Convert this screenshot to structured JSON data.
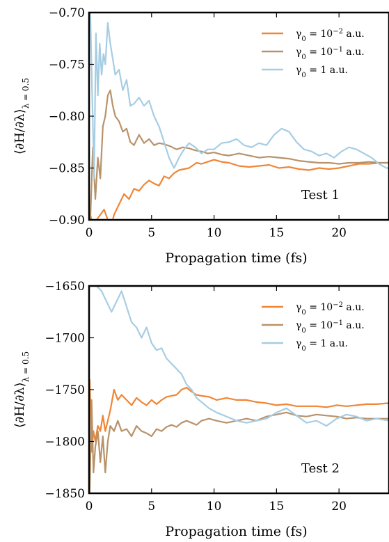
{
  "series_colors": {
    "g1": "#ef8636",
    "g2": "#b8926a",
    "g3": "#a6cde3"
  },
  "chart_data": [
    {
      "type": "line",
      "xlabel": "Propagation time (fs)",
      "ylabel": "⟨∂H/∂λ⟩",
      "ylabel_sub": "λ = 0.5",
      "annotation": "Test 1",
      "xlim": [
        0,
        24
      ],
      "ylim": [
        -0.9,
        -0.7
      ],
      "xticks": [
        0,
        5,
        10,
        15,
        20
      ],
      "xtick_labels": [
        "0",
        "5",
        "10",
        "15",
        "20"
      ],
      "yticks": [
        -0.9,
        -0.85,
        -0.8,
        -0.75,
        -0.7
      ],
      "ytick_labels": [
        "−0.90",
        "−0.85",
        "−0.80",
        "−0.75",
        "−0.70"
      ],
      "legend": "top-right",
      "series": [
        {
          "name": "γ0 = 10^-2 a.u.",
          "name_base": "γ",
          "name_sub": "0",
          "name_eq": " = 10",
          "name_sup": "−2",
          "name_unit": " a.u.",
          "color": "#ef8636",
          "x": [
            0.1,
            0.3,
            0.6,
            0.9,
            1.2,
            1.5,
            1.8,
            2.0,
            2.4,
            2.8,
            3.2,
            3.6,
            4.0,
            4.4,
            4.8,
            5.2,
            5.6,
            6.0,
            6.4,
            6.8,
            7.2,
            7.6,
            8.0,
            8.6,
            9.0,
            9.5,
            10.0,
            10.6,
            11.2,
            12.0,
            12.8,
            13.6,
            14.4,
            15.2,
            16.0,
            16.8,
            17.6,
            18.4,
            19.2,
            20.0,
            20.8,
            21.6,
            22.4,
            23.2,
            24.0
          ],
          "y": [
            -0.895,
            -0.905,
            -0.9,
            -0.895,
            -0.89,
            -0.9,
            -0.905,
            -0.895,
            -0.885,
            -0.875,
            -0.88,
            -0.87,
            -0.872,
            -0.866,
            -0.862,
            -0.865,
            -0.867,
            -0.858,
            -0.86,
            -0.855,
            -0.852,
            -0.851,
            -0.85,
            -0.845,
            -0.846,
            -0.844,
            -0.842,
            -0.844,
            -0.845,
            -0.848,
            -0.849,
            -0.848,
            -0.847,
            -0.85,
            -0.849,
            -0.851,
            -0.852,
            -0.85,
            -0.851,
            -0.85,
            -0.848,
            -0.846,
            -0.846,
            -0.845,
            -0.845
          ]
        },
        {
          "name": "γ0 = 10^-1 a.u.",
          "name_base": "γ",
          "name_sub": "0",
          "name_eq": " = 10",
          "name_sup": "−1",
          "name_unit": " a.u.",
          "color": "#b8926a",
          "x": [
            0.1,
            0.3,
            0.5,
            0.7,
            0.9,
            1.1,
            1.3,
            1.5,
            1.7,
            1.9,
            2.1,
            2.4,
            2.7,
            3.0,
            3.3,
            3.6,
            4.0,
            4.4,
            4.8,
            5.2,
            5.6,
            6.0,
            6.5,
            7.0,
            7.5,
            8.0,
            8.5,
            9.0,
            9.5,
            10.0,
            10.6,
            11.2,
            12.0,
            12.8,
            13.6,
            14.4,
            15.2,
            16.0,
            16.8,
            17.6,
            18.4,
            19.2,
            20.0,
            20.8,
            21.6,
            22.4,
            23.2,
            24.0
          ],
          "y": [
            -0.9,
            -0.83,
            -0.88,
            -0.84,
            -0.86,
            -0.81,
            -0.8,
            -0.78,
            -0.775,
            -0.79,
            -0.8,
            -0.805,
            -0.815,
            -0.812,
            -0.825,
            -0.828,
            -0.818,
            -0.826,
            -0.822,
            -0.828,
            -0.826,
            -0.827,
            -0.829,
            -0.832,
            -0.83,
            -0.831,
            -0.833,
            -0.834,
            -0.836,
            -0.835,
            -0.837,
            -0.838,
            -0.836,
            -0.838,
            -0.84,
            -0.839,
            -0.84,
            -0.841,
            -0.843,
            -0.844,
            -0.845,
            -0.845,
            -0.846,
            -0.845,
            -0.845,
            -0.844,
            -0.845,
            -0.845
          ]
        },
        {
          "name": "γ0 = 1 a.u.",
          "name_base": "γ",
          "name_sub": "0",
          "name_eq": " = 1",
          "name_sup": "",
          "name_unit": " a.u.",
          "color": "#a6cde3",
          "x": [
            0.1,
            0.25,
            0.4,
            0.55,
            0.7,
            0.85,
            1.0,
            1.15,
            1.3,
            1.5,
            1.7,
            1.9,
            2.1,
            2.4,
            2.7,
            3.0,
            3.3,
            3.6,
            4.0,
            4.4,
            4.8,
            5.2,
            5.6,
            6.0,
            6.4,
            6.8,
            7.2,
            7.6,
            8.0,
            8.5,
            9.0,
            9.5,
            10.0,
            10.6,
            11.2,
            11.8,
            12.4,
            13.0,
            13.6,
            14.2,
            14.8,
            15.4,
            16.0,
            16.6,
            17.2,
            17.8,
            18.4,
            19.0,
            19.6,
            20.2,
            20.8,
            21.4,
            22.0,
            22.6,
            23.2,
            23.8,
            24.0
          ],
          "y": [
            -0.7,
            -0.78,
            -0.86,
            -0.72,
            -0.78,
            -0.73,
            -0.76,
            -0.74,
            -0.75,
            -0.71,
            -0.73,
            -0.745,
            -0.76,
            -0.755,
            -0.775,
            -0.765,
            -0.79,
            -0.788,
            -0.782,
            -0.79,
            -0.785,
            -0.8,
            -0.81,
            -0.825,
            -0.84,
            -0.85,
            -0.84,
            -0.832,
            -0.826,
            -0.83,
            -0.836,
            -0.832,
            -0.832,
            -0.826,
            -0.825,
            -0.822,
            -0.828,
            -0.83,
            -0.826,
            -0.828,
            -0.818,
            -0.812,
            -0.815,
            -0.825,
            -0.832,
            -0.834,
            -0.838,
            -0.836,
            -0.84,
            -0.834,
            -0.83,
            -0.832,
            -0.836,
            -0.84,
            -0.846,
            -0.85,
            -0.85
          ]
        }
      ]
    },
    {
      "type": "line",
      "xlabel": "Propagation time (fs)",
      "ylabel": "⟨∂H/∂λ⟩",
      "ylabel_sub": "λ = 0.5",
      "annotation": "Test 2",
      "xlim": [
        0,
        24
      ],
      "ylim": [
        -1850,
        -1650
      ],
      "xticks": [
        0,
        5,
        10,
        15,
        20
      ],
      "xtick_labels": [
        "0",
        "5",
        "10",
        "15",
        "20"
      ],
      "yticks": [
        -1850,
        -1800,
        -1750,
        -1700,
        -1650
      ],
      "ytick_labels": [
        "−1850",
        "−1800",
        "−1750",
        "−1700",
        "−1650"
      ],
      "legend": "top-right",
      "series": [
        {
          "name": "γ0 = 10^-2 a.u.",
          "name_base": "γ",
          "name_sub": "0",
          "name_eq": " = 10",
          "name_sup": "−2",
          "name_unit": " a.u.",
          "color": "#ef8636",
          "x": [
            0.05,
            0.2,
            0.35,
            0.5,
            0.7,
            0.9,
            1.1,
            1.3,
            1.5,
            1.7,
            2.0,
            2.3,
            2.6,
            3.0,
            3.4,
            3.8,
            4.2,
            4.6,
            5.0,
            5.4,
            5.8,
            6.2,
            6.6,
            7.0,
            7.4,
            7.8,
            8.2,
            8.6,
            9.0,
            9.6,
            10.2,
            11.0,
            11.8,
            12.6,
            13.4,
            14.2,
            15.0,
            15.8,
            16.6,
            17.4,
            18.2,
            19.0,
            19.8,
            20.6,
            21.4,
            22.2,
            23.0,
            24.0
          ],
          "y": [
            -1740,
            -1810,
            -1790,
            -1800,
            -1785,
            -1790,
            -1775,
            -1790,
            -1780,
            -1770,
            -1750,
            -1760,
            -1755,
            -1760,
            -1765,
            -1758,
            -1762,
            -1765,
            -1760,
            -1764,
            -1760,
            -1757,
            -1756,
            -1755,
            -1750,
            -1748,
            -1752,
            -1755,
            -1756,
            -1757,
            -1760,
            -1758,
            -1760,
            -1760,
            -1762,
            -1763,
            -1765,
            -1764,
            -1766,
            -1766,
            -1766,
            -1767,
            -1765,
            -1766,
            -1765,
            -1764,
            -1764,
            -1763
          ]
        },
        {
          "name": "γ0 = 10^-1 a.u.",
          "name_base": "γ",
          "name_sub": "0",
          "name_eq": " = 10",
          "name_sup": "−1",
          "name_unit": " a.u.",
          "color": "#b8926a",
          "x": [
            0.05,
            0.2,
            0.35,
            0.5,
            0.7,
            0.9,
            1.1,
            1.3,
            1.5,
            1.7,
            2.0,
            2.3,
            2.6,
            3.0,
            3.4,
            3.8,
            4.2,
            4.6,
            5.0,
            5.4,
            5.8,
            6.2,
            6.6,
            7.0,
            7.4,
            7.8,
            8.2,
            8.6,
            9.0,
            9.6,
            10.2,
            11.0,
            11.8,
            12.6,
            13.4,
            14.2,
            15.0,
            15.8,
            16.6,
            17.4,
            18.2,
            19.0,
            19.8,
            20.6,
            21.4,
            22.2,
            23.0,
            24.0
          ],
          "y": [
            -1850,
            -1760,
            -1830,
            -1805,
            -1790,
            -1820,
            -1795,
            -1830,
            -1800,
            -1785,
            -1790,
            -1780,
            -1790,
            -1788,
            -1795,
            -1785,
            -1790,
            -1792,
            -1795,
            -1788,
            -1790,
            -1786,
            -1784,
            -1786,
            -1782,
            -1780,
            -1782,
            -1784,
            -1780,
            -1778,
            -1780,
            -1782,
            -1780,
            -1778,
            -1780,
            -1776,
            -1774,
            -1772,
            -1775,
            -1776,
            -1774,
            -1775,
            -1776,
            -1778,
            -1777,
            -1778,
            -1778,
            -1778
          ]
        },
        {
          "name": "γ0 = 1 a.u.",
          "name_base": "γ",
          "name_sub": "0",
          "name_eq": " = 1",
          "name_sup": "",
          "name_unit": " a.u.",
          "color": "#a6cde3",
          "x": [
            0.05,
            0.3,
            0.6,
            1.0,
            1.4,
            1.8,
            2.2,
            2.6,
            3.0,
            3.4,
            3.8,
            4.2,
            4.6,
            5.0,
            5.4,
            5.8,
            6.2,
            6.6,
            7.0,
            7.4,
            7.8,
            8.2,
            8.6,
            9.0,
            9.6,
            10.2,
            11.0,
            11.8,
            12.6,
            13.4,
            14.2,
            15.0,
            15.8,
            16.6,
            17.4,
            18.2,
            19.0,
            19.8,
            20.6,
            21.4,
            22.2,
            23.0,
            24.0
          ],
          "y": [
            -1650,
            -1650,
            -1650,
            -1655,
            -1665,
            -1675,
            -1665,
            -1655,
            -1670,
            -1685,
            -1690,
            -1700,
            -1690,
            -1705,
            -1712,
            -1710,
            -1720,
            -1725,
            -1730,
            -1735,
            -1745,
            -1750,
            -1758,
            -1762,
            -1768,
            -1772,
            -1776,
            -1780,
            -1782,
            -1780,
            -1778,
            -1772,
            -1768,
            -1775,
            -1782,
            -1780,
            -1785,
            -1778,
            -1774,
            -1776,
            -1780,
            -1778,
            -1780
          ]
        }
      ]
    }
  ]
}
